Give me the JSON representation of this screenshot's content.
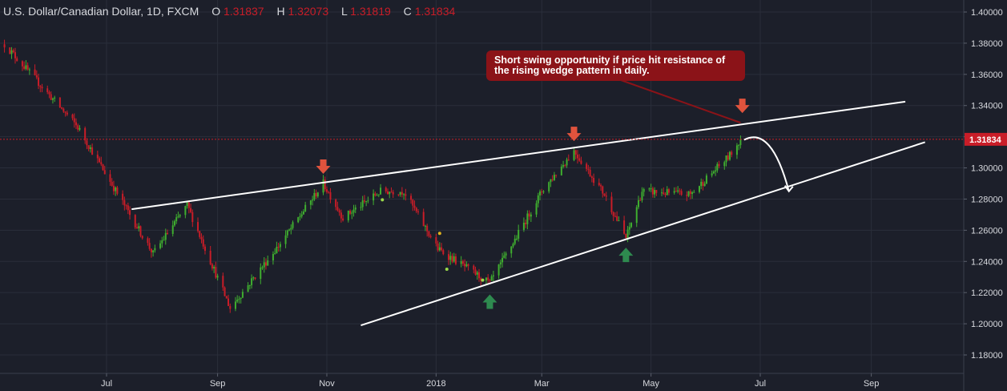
{
  "header": {
    "symbol": "U.S. Dollar/Canadian Dollar, 1D, FXCM",
    "open_label": "O",
    "open_value": "1.31837",
    "high_label": "H",
    "high_value": "1.32073",
    "low_label": "L",
    "low_value": "1.31819",
    "close_label": "C",
    "close_value": "1.31834"
  },
  "annotation": {
    "text": "Short swing opportunity if price hit resistance of the rising wedge pattern in daily."
  },
  "colors": {
    "background": "#1c1f2a",
    "up_candle": "#3fae2f",
    "down_candle": "#c91d28",
    "trendline": "#ffffff",
    "price_tag": "#c91d28",
    "sell_arrow": "#e0533d",
    "buy_arrow": "#2e8a4f",
    "callout": "#8b1318"
  },
  "chart_data": {
    "type": "candlestick",
    "pattern": "rising wedge",
    "ylim": [
      1.17,
      1.405
    ],
    "y_ticks": [
      "1.18000",
      "1.20000",
      "1.22000",
      "1.24000",
      "1.26000",
      "1.28000",
      "1.30000",
      "1.32000",
      "1.34000",
      "1.36000",
      "1.38000",
      "1.40000"
    ],
    "x_ticks": [
      "Jul",
      "Sep",
      "Nov",
      "2018",
      "Mar",
      "May",
      "Jul",
      "Sep"
    ],
    "last_price": "1.31834",
    "key_points": [
      {
        "date": "2017-05-05",
        "price": 1.3793
      },
      {
        "date": "2017-06-15",
        "price": 1.326
      },
      {
        "date": "2017-07-27",
        "price": 1.245
      },
      {
        "date": "2017-08-15",
        "price": 1.276
      },
      {
        "date": "2017-09-08",
        "price": 1.21
      },
      {
        "date": "2017-10-05",
        "price": 1.25
      },
      {
        "date": "2017-10-30",
        "price": 1.29
      },
      {
        "date": "2017-11-10",
        "price": 1.268
      },
      {
        "date": "2017-12-01",
        "price": 1.285
      },
      {
        "date": "2017-12-14",
        "price": 1.285
      },
      {
        "date": "2018-01-02",
        "price": 1.248
      },
      {
        "date": "2018-01-31",
        "price": 1.226
      },
      {
        "date": "2018-02-15",
        "price": 1.256
      },
      {
        "date": "2018-03-01",
        "price": 1.285
      },
      {
        "date": "2018-03-19",
        "price": 1.311
      },
      {
        "date": "2018-04-05",
        "price": 1.283
      },
      {
        "date": "2018-04-17",
        "price": 1.255
      },
      {
        "date": "2018-04-26",
        "price": 1.285
      },
      {
        "date": "2018-05-23",
        "price": 1.283
      },
      {
        "date": "2018-06-14",
        "price": 1.308
      },
      {
        "date": "2018-06-20",
        "price": 1.3183
      }
    ],
    "trendlines": [
      {
        "name": "resistance",
        "points": [
          {
            "date": "2017-07-15",
            "price": 1.2735
          },
          {
            "date": "2018-09-20",
            "price": 1.3425
          }
        ]
      },
      {
        "name": "support",
        "points": [
          {
            "date": "2017-11-20",
            "price": 1.199
          },
          {
            "date": "2018-10-01",
            "price": 1.3165
          }
        ]
      }
    ],
    "signals": [
      {
        "kind": "sell",
        "date": "2017-10-30",
        "price": 1.29
      },
      {
        "kind": "sell",
        "date": "2018-03-19",
        "price": 1.311
      },
      {
        "kind": "sell",
        "date": "2018-06-21",
        "price": 1.329
      },
      {
        "kind": "buy",
        "date": "2018-01-31",
        "price": 1.225
      },
      {
        "kind": "buy",
        "date": "2018-04-17",
        "price": 1.255
      }
    ],
    "projection": [
      {
        "date": "2018-06-22",
        "price": 1.318
      },
      {
        "date": "2018-07-02",
        "price": 1.326
      },
      {
        "date": "2018-07-17",
        "price": 1.285
      }
    ]
  }
}
